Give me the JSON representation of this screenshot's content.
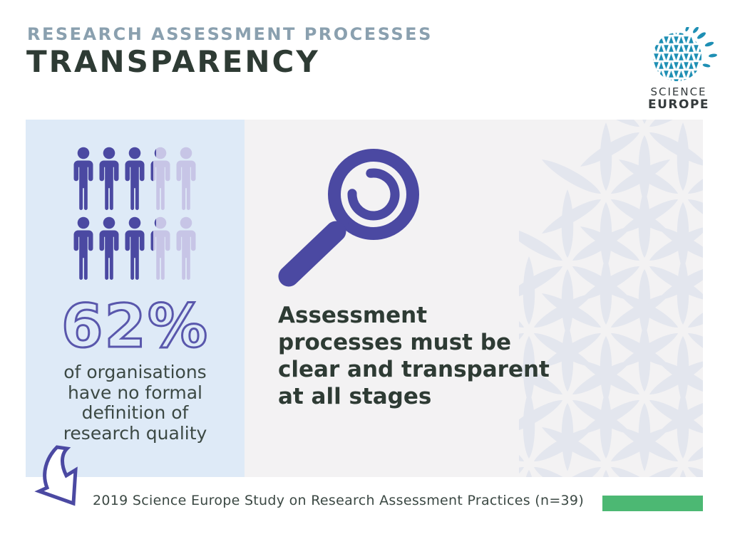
{
  "header": {
    "subtitle": "RESEARCH ASSESSMENT PROCESSES",
    "title": "TRANSPARENCY"
  },
  "logo": {
    "line1": "SCIENCE",
    "line2": "EUROPE"
  },
  "stat_panel": {
    "percentage": "62%",
    "caption_lines": [
      "of organisations",
      "have no formal",
      "definition of",
      "research quality"
    ],
    "pictograph": {
      "total_icons": 10,
      "rows": 2,
      "fill_fractions": [
        [
          1,
          1,
          1,
          0.13,
          0
        ],
        [
          1,
          1,
          1,
          0.13,
          0
        ]
      ]
    }
  },
  "message_panel": {
    "lines": [
      "Assessment",
      "processes must be",
      "clear and transparent",
      "at all stages"
    ]
  },
  "footer": {
    "source": "2019 Science Europe Study on Research Assessment Practices (n=39)"
  },
  "colors": {
    "purple_dark": "#4B49A2",
    "purple_light": "#C7C5E6",
    "stat_outline": "#5957AC",
    "panel_blue": "#DEEAF7",
    "panel_gray": "#F3F2F3",
    "pattern": "#E3E6EE",
    "text_dark": "#3C4944",
    "title_dark": "#2E3B34",
    "subtitle_gray": "#8AA0AF",
    "logo_teal": "#1E8FB4",
    "logo_text": "#343A3C",
    "green_accent": "#4CB873"
  },
  "chart_data": {
    "type": "pictograph",
    "title": "TRANSPARENCY",
    "subtitle": "RESEARCH ASSESSMENT PROCESSES",
    "value_percent": 62,
    "value_label": "62%",
    "statement": "of organisations have no formal definition of research quality",
    "icons_total": 10,
    "icons_highlighted": 6.2,
    "key_message": "Assessment processes must be clear and transparent at all stages",
    "source": "2019 Science Europe Study on Research Assessment Practices (n=39)",
    "year": 2019,
    "sample_size": 39
  }
}
